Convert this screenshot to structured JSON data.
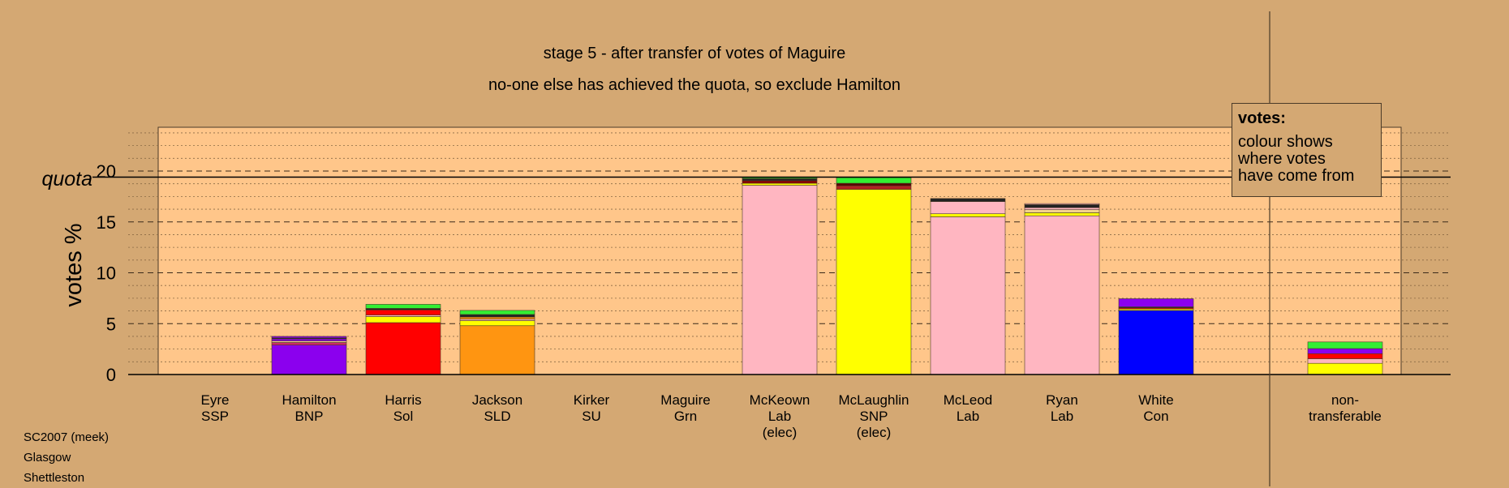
{
  "chart_data": {
    "type": "bar",
    "stacked": true,
    "title": "stage 5 - after transfer of votes of Maguire",
    "subtitle": "no-one else has achieved the quota, so exclude Hamilton",
    "ylabel": "votes %",
    "ylim": [
      0,
      24.5
    ],
    "yticks": [
      "0",
      "5",
      "10",
      "15",
      "20"
    ],
    "quota": {
      "label": "quota",
      "value": 19.4
    },
    "grid": "dashed major, dotted minor",
    "categories": [
      {
        "name": "Eyre",
        "party": "SSP",
        "note": ""
      },
      {
        "name": "Hamilton",
        "party": "BNP",
        "note": ""
      },
      {
        "name": "Harris",
        "party": "Sol",
        "note": ""
      },
      {
        "name": "Jackson",
        "party": "SLD",
        "note": ""
      },
      {
        "name": "Kirker",
        "party": "SU",
        "note": ""
      },
      {
        "name": "Maguire",
        "party": "Grn",
        "note": ""
      },
      {
        "name": "McKeown",
        "party": "Lab",
        "note": "(elec)"
      },
      {
        "name": "McLaughlin",
        "party": "SNP",
        "note": "(elec)"
      },
      {
        "name": "McLeod",
        "party": "Lab",
        "note": ""
      },
      {
        "name": "Ryan",
        "party": "Lab",
        "note": ""
      },
      {
        "name": "White",
        "party": "Con",
        "note": ""
      },
      {
        "name": "non-",
        "party": "transferable",
        "note": ""
      }
    ],
    "stacks": [
      [],
      [
        {
          "v": 2.9,
          "c": "#8b00ee"
        },
        {
          "v": 0.25,
          "c": "#cc2a6a"
        },
        {
          "v": 0.15,
          "c": "#f4d38c"
        },
        {
          "v": 0.2,
          "c": "#8b00ee"
        },
        {
          "v": 0.1,
          "c": "#222222"
        },
        {
          "v": 0.15,
          "c": "#8b00ee"
        }
      ],
      [
        {
          "v": 5.1,
          "c": "#ff0000"
        },
        {
          "v": 0.6,
          "c": "#ffff00"
        },
        {
          "v": 0.15,
          "c": "#ffb6c1"
        },
        {
          "v": 0.5,
          "c": "#ff0000"
        },
        {
          "v": 0.15,
          "c": "#222222"
        },
        {
          "v": 0.4,
          "c": "#33ee33"
        }
      ],
      [
        {
          "v": 4.8,
          "c": "#ff9511"
        },
        {
          "v": 0.5,
          "c": "#ffff00"
        },
        {
          "v": 0.15,
          "c": "#ffb6c1"
        },
        {
          "v": 0.2,
          "c": "#ff9511"
        },
        {
          "v": 0.25,
          "c": "#222222"
        },
        {
          "v": 0.4,
          "c": "#33ee33"
        }
      ],
      [],
      [],
      [
        {
          "v": 18.6,
          "c": "#ffb6c1"
        },
        {
          "v": 0.2,
          "c": "#ffff00"
        },
        {
          "v": 0.25,
          "c": "#8b0000"
        },
        {
          "v": 0.2,
          "c": "#222222"
        },
        {
          "v": 0.1,
          "c": "#33ee33"
        }
      ],
      [
        {
          "v": 18.2,
          "c": "#ffff00"
        },
        {
          "v": 0.35,
          "c": "#b22222"
        },
        {
          "v": 0.25,
          "c": "#5a0000"
        },
        {
          "v": 0.55,
          "c": "#33ee33"
        }
      ],
      [
        {
          "v": 15.5,
          "c": "#ffb6c1"
        },
        {
          "v": 0.3,
          "c": "#ffff00"
        },
        {
          "v": 1.2,
          "c": "#ffb6c1"
        },
        {
          "v": 0.3,
          "c": "#222222"
        }
      ],
      [
        {
          "v": 15.6,
          "c": "#ffb6c1"
        },
        {
          "v": 0.3,
          "c": "#ffff00"
        },
        {
          "v": 0.3,
          "c": "#f4d38c"
        },
        {
          "v": 0.2,
          "c": "#ffb6c1"
        },
        {
          "v": 0.3,
          "c": "#222222"
        },
        {
          "v": 0.1,
          "c": "#ffb6c1"
        }
      ],
      [
        {
          "v": 6.3,
          "c": "#0000ff"
        },
        {
          "v": 0.15,
          "c": "#ffff00"
        },
        {
          "v": 0.1,
          "c": "#ff0000"
        },
        {
          "v": 0.1,
          "c": "#222222"
        },
        {
          "v": 0.8,
          "c": "#8b00ee"
        }
      ],
      [
        {
          "v": 1.1,
          "c": "#ffff00"
        },
        {
          "v": 0.45,
          "c": "#ffb6c1"
        },
        {
          "v": 0.5,
          "c": "#ff0000"
        },
        {
          "v": 0.5,
          "c": "#8b00ee"
        },
        {
          "v": 0.65,
          "c": "#33ee33"
        }
      ]
    ]
  },
  "legend": {
    "title": "votes:",
    "lines": [
      "colour shows",
      "where votes",
      "have come from"
    ]
  },
  "footer": [
    "SC2007 (meek)",
    "Glasgow",
    "Shettleston"
  ],
  "colors": {
    "background": "#d4a873",
    "plot_area": "#ffc68a"
  }
}
